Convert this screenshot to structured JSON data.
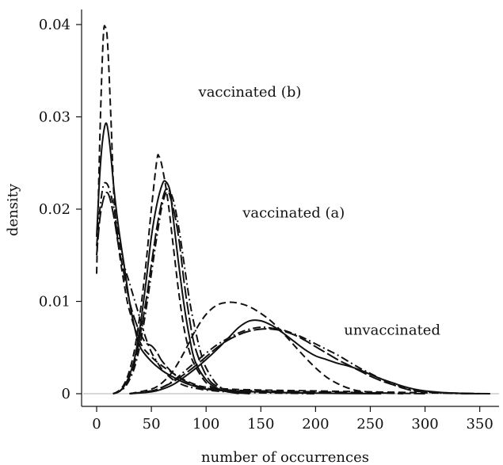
{
  "chart_data": {
    "type": "line",
    "xlabel": "number of occurrences",
    "ylabel": "density",
    "xlim": [
      0,
      370
    ],
    "ylim": [
      0,
      0.04
    ],
    "xticks": [
      0,
      50,
      100,
      150,
      200,
      250,
      300,
      350
    ],
    "yticks": [
      0,
      0.01,
      0.02,
      0.03,
      0.04
    ],
    "xtick_labels": [
      "0",
      "50",
      "100",
      "150",
      "200",
      "250",
      "300",
      "350"
    ],
    "ytick_labels": [
      "0",
      "0.01",
      "0.02",
      "0.03",
      "0.04"
    ],
    "grid": false,
    "annotations": [
      {
        "text": "vaccinated (b)",
        "x": 140,
        "y": 0.0327
      },
      {
        "text": "vaccinated (a)",
        "x": 180,
        "y": 0.0196
      },
      {
        "text": "unvaccinated",
        "x": 270,
        "y": 0.0069
      }
    ],
    "series": [
      {
        "group": "vaccinated (b)",
        "style": "solid",
        "points": [
          [
            0,
            0.017
          ],
          [
            3,
            0.024
          ],
          [
            6,
            0.028
          ],
          [
            9,
            0.0293
          ],
          [
            12,
            0.027
          ],
          [
            16,
            0.022
          ],
          [
            20,
            0.018
          ],
          [
            25,
            0.014
          ],
          [
            30,
            0.01
          ],
          [
            35,
            0.007
          ],
          [
            40,
            0.005
          ],
          [
            50,
            0.0035
          ],
          [
            60,
            0.0025
          ],
          [
            70,
            0.0018
          ],
          [
            80,
            0.0012
          ],
          [
            90,
            0.0008
          ],
          [
            100,
            0.0005
          ],
          [
            120,
            0.0003
          ],
          [
            150,
            0.0002
          ],
          [
            180,
            0.0001
          ],
          [
            220,
            3e-05
          ],
          [
            260,
            0
          ]
        ]
      },
      {
        "group": "vaccinated (b)",
        "style": "dashed",
        "points": [
          [
            0,
            0.013
          ],
          [
            3,
            0.028
          ],
          [
            6,
            0.0385
          ],
          [
            8,
            0.0397
          ],
          [
            10,
            0.038
          ],
          [
            13,
            0.03
          ],
          [
            16,
            0.021
          ],
          [
            20,
            0.016
          ],
          [
            25,
            0.012
          ],
          [
            30,
            0.009
          ],
          [
            40,
            0.0055
          ],
          [
            50,
            0.004
          ],
          [
            60,
            0.003
          ],
          [
            70,
            0.0022
          ],
          [
            80,
            0.0015
          ],
          [
            90,
            0.001
          ],
          [
            100,
            0.0007
          ],
          [
            120,
            0.0005
          ],
          [
            150,
            0.0004
          ],
          [
            200,
            0.0003
          ],
          [
            250,
            0.0002
          ],
          [
            300,
            0.0001
          ],
          [
            350,
            0
          ]
        ]
      },
      {
        "group": "vaccinated (b)",
        "style": "dashdot",
        "points": [
          [
            0,
            0.016
          ],
          [
            3,
            0.02
          ],
          [
            6,
            0.0225
          ],
          [
            9,
            0.0228
          ],
          [
            12,
            0.022
          ],
          [
            16,
            0.02
          ],
          [
            20,
            0.017
          ],
          [
            25,
            0.014
          ],
          [
            30,
            0.012
          ],
          [
            35,
            0.01
          ],
          [
            40,
            0.008
          ],
          [
            45,
            0.006
          ],
          [
            50,
            0.0045
          ],
          [
            55,
            0.0035
          ],
          [
            60,
            0.0026
          ],
          [
            70,
            0.0015
          ],
          [
            80,
            0.0009
          ],
          [
            90,
            0.0006
          ],
          [
            100,
            0.0004
          ],
          [
            120,
            0.0002
          ],
          [
            150,
            0.0001
          ],
          [
            200,
            0
          ]
        ]
      },
      {
        "group": "vaccinated (b)",
        "style": "longdash",
        "points": [
          [
            0,
            0.015
          ],
          [
            3,
            0.019
          ],
          [
            6,
            0.021
          ],
          [
            9,
            0.0218
          ],
          [
            12,
            0.0212
          ],
          [
            16,
            0.019
          ],
          [
            20,
            0.016
          ],
          [
            25,
            0.013
          ],
          [
            30,
            0.01
          ],
          [
            35,
            0.008
          ],
          [
            40,
            0.0065
          ],
          [
            45,
            0.0055
          ],
          [
            50,
            0.0052
          ],
          [
            55,
            0.0045
          ],
          [
            60,
            0.0035
          ],
          [
            70,
            0.0022
          ],
          [
            80,
            0.0014
          ],
          [
            90,
            0.0009
          ],
          [
            100,
            0.0006
          ],
          [
            120,
            0.0004
          ],
          [
            150,
            0.0003
          ],
          [
            200,
            0.0002
          ],
          [
            250,
            0.0001
          ],
          [
            300,
            0
          ]
        ]
      },
      {
        "group": "vaccinated (a)",
        "style": "solid",
        "points": [
          [
            15,
            0
          ],
          [
            20,
            0.0002
          ],
          [
            25,
            0.0008
          ],
          [
            30,
            0.002
          ],
          [
            35,
            0.004
          ],
          [
            40,
            0.0075
          ],
          [
            45,
            0.012
          ],
          [
            50,
            0.017
          ],
          [
            55,
            0.0205
          ],
          [
            60,
            0.0227
          ],
          [
            63,
            0.023
          ],
          [
            67,
            0.022
          ],
          [
            70,
            0.019
          ],
          [
            75,
            0.014
          ],
          [
            80,
            0.0095
          ],
          [
            85,
            0.006
          ],
          [
            90,
            0.0035
          ],
          [
            100,
            0.0015
          ],
          [
            110,
            0.0006
          ],
          [
            120,
            0.0002
          ],
          [
            140,
            0
          ]
        ]
      },
      {
        "group": "vaccinated (a)",
        "style": "dashed",
        "points": [
          [
            15,
            0
          ],
          [
            20,
            0.0003
          ],
          [
            25,
            0.001
          ],
          [
            30,
            0.0025
          ],
          [
            35,
            0.005
          ],
          [
            40,
            0.009
          ],
          [
            45,
            0.014
          ],
          [
            50,
            0.02
          ],
          [
            55,
            0.0253
          ],
          [
            57,
            0.0257
          ],
          [
            60,
            0.0245
          ],
          [
            65,
            0.021
          ],
          [
            70,
            0.016
          ],
          [
            75,
            0.011
          ],
          [
            80,
            0.007
          ],
          [
            85,
            0.0045
          ],
          [
            90,
            0.003
          ],
          [
            100,
            0.0012
          ],
          [
            110,
            0.0005
          ],
          [
            130,
            0
          ]
        ]
      },
      {
        "group": "vaccinated (a)",
        "style": "dashdot",
        "points": [
          [
            15,
            0
          ],
          [
            20,
            0.0002
          ],
          [
            25,
            0.0006
          ],
          [
            30,
            0.0015
          ],
          [
            35,
            0.003
          ],
          [
            40,
            0.0055
          ],
          [
            45,
            0.009
          ],
          [
            50,
            0.013
          ],
          [
            55,
            0.017
          ],
          [
            60,
            0.0205
          ],
          [
            65,
            0.022
          ],
          [
            70,
            0.021
          ],
          [
            75,
            0.018
          ],
          [
            80,
            0.014
          ],
          [
            85,
            0.01
          ],
          [
            90,
            0.007
          ],
          [
            95,
            0.0045
          ],
          [
            100,
            0.0028
          ],
          [
            110,
            0.001
          ],
          [
            120,
            0.0004
          ],
          [
            140,
            0
          ]
        ]
      },
      {
        "group": "vaccinated (a)",
        "style": "longdash",
        "points": [
          [
            15,
            0
          ],
          [
            20,
            0.0002
          ],
          [
            25,
            0.0007
          ],
          [
            30,
            0.0018
          ],
          [
            35,
            0.0035
          ],
          [
            40,
            0.0065
          ],
          [
            45,
            0.01
          ],
          [
            50,
            0.014
          ],
          [
            55,
            0.018
          ],
          [
            60,
            0.021
          ],
          [
            64,
            0.0222
          ],
          [
            68,
            0.021
          ],
          [
            72,
            0.019
          ],
          [
            76,
            0.016
          ],
          [
            80,
            0.012
          ],
          [
            85,
            0.008
          ],
          [
            90,
            0.005
          ],
          [
            100,
            0.002
          ],
          [
            110,
            0.0008
          ],
          [
            130,
            0
          ]
        ]
      },
      {
        "group": "unvaccinated",
        "style": "solid",
        "points": [
          [
            30,
            0
          ],
          [
            50,
            0.0002
          ],
          [
            60,
            0.0005
          ],
          [
            70,
            0.001
          ],
          [
            80,
            0.0018
          ],
          [
            90,
            0.0027
          ],
          [
            100,
            0.0037
          ],
          [
            110,
            0.0048
          ],
          [
            120,
            0.006
          ],
          [
            130,
            0.0072
          ],
          [
            140,
            0.0079
          ],
          [
            150,
            0.0079
          ],
          [
            160,
            0.0074
          ],
          [
            170,
            0.0066
          ],
          [
            180,
            0.0057
          ],
          [
            190,
            0.0048
          ],
          [
            200,
            0.0041
          ],
          [
            210,
            0.0037
          ],
          [
            220,
            0.0033
          ],
          [
            230,
            0.003
          ],
          [
            240,
            0.0026
          ],
          [
            250,
            0.0021
          ],
          [
            260,
            0.0016
          ],
          [
            270,
            0.0012
          ],
          [
            280,
            0.0008
          ],
          [
            290,
            0.0005
          ],
          [
            300,
            0.0003
          ],
          [
            320,
            0.0001
          ],
          [
            350,
            0
          ]
        ]
      },
      {
        "group": "unvaccinated",
        "style": "dashed",
        "points": [
          [
            30,
            0
          ],
          [
            50,
            0.0005
          ],
          [
            60,
            0.0012
          ],
          [
            70,
            0.0025
          ],
          [
            80,
            0.0045
          ],
          [
            90,
            0.0068
          ],
          [
            100,
            0.0086
          ],
          [
            110,
            0.0096
          ],
          [
            120,
            0.0099
          ],
          [
            130,
            0.0098
          ],
          [
            140,
            0.0094
          ],
          [
            150,
            0.0087
          ],
          [
            160,
            0.0078
          ],
          [
            170,
            0.0066
          ],
          [
            180,
            0.0053
          ],
          [
            190,
            0.004
          ],
          [
            200,
            0.0028
          ],
          [
            210,
            0.0018
          ],
          [
            220,
            0.0011
          ],
          [
            230,
            0.0006
          ],
          [
            240,
            0.0003
          ],
          [
            260,
            0.0001
          ],
          [
            280,
            0
          ]
        ]
      },
      {
        "group": "unvaccinated",
        "style": "dashdot",
        "points": [
          [
            30,
            0
          ],
          [
            50,
            0.0003
          ],
          [
            60,
            0.0007
          ],
          [
            70,
            0.0014
          ],
          [
            80,
            0.0024
          ],
          [
            90,
            0.0034
          ],
          [
            100,
            0.0044
          ],
          [
            110,
            0.0053
          ],
          [
            120,
            0.006
          ],
          [
            130,
            0.0066
          ],
          [
            140,
            0.007
          ],
          [
            150,
            0.0072
          ],
          [
            160,
            0.0071
          ],
          [
            170,
            0.0069
          ],
          [
            180,
            0.0065
          ],
          [
            190,
            0.006
          ],
          [
            200,
            0.0054
          ],
          [
            210,
            0.0048
          ],
          [
            220,
            0.0042
          ],
          [
            230,
            0.0035
          ],
          [
            240,
            0.0028
          ],
          [
            250,
            0.0022
          ],
          [
            260,
            0.0016
          ],
          [
            270,
            0.0011
          ],
          [
            280,
            0.0007
          ],
          [
            290,
            0.0004
          ],
          [
            300,
            0.0002
          ],
          [
            320,
            5e-05
          ],
          [
            340,
            0
          ]
        ]
      },
      {
        "group": "unvaccinated",
        "style": "longdash",
        "points": [
          [
            30,
            0
          ],
          [
            50,
            0.0003
          ],
          [
            60,
            0.0007
          ],
          [
            70,
            0.0013
          ],
          [
            80,
            0.0021
          ],
          [
            90,
            0.003
          ],
          [
            100,
            0.004
          ],
          [
            110,
            0.005
          ],
          [
            120,
            0.0058
          ],
          [
            130,
            0.0064
          ],
          [
            140,
            0.0068
          ],
          [
            150,
            0.007
          ],
          [
            160,
            0.007
          ],
          [
            170,
            0.0068
          ],
          [
            180,
            0.0064
          ],
          [
            190,
            0.0058
          ],
          [
            200,
            0.0051
          ],
          [
            210,
            0.0044
          ],
          [
            220,
            0.0037
          ],
          [
            230,
            0.0031
          ],
          [
            240,
            0.0025
          ],
          [
            250,
            0.0019
          ],
          [
            260,
            0.0014
          ],
          [
            270,
            0.001
          ],
          [
            280,
            0.0006
          ],
          [
            290,
            0.0003
          ],
          [
            300,
            0.0002
          ],
          [
            320,
            0.0001
          ],
          [
            340,
            3e-05
          ],
          [
            360,
            0
          ]
        ]
      }
    ]
  }
}
